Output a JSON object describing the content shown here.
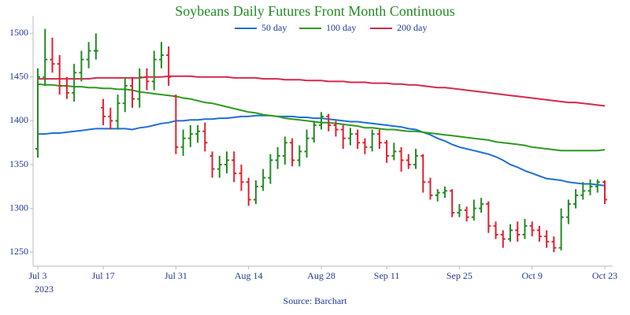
{
  "chart_data": {
    "type": "ohlc",
    "title": "Soybeans Daily Futures Front Month Continuous",
    "source": "Source: Barchart",
    "categories": [
      "Jul 3",
      null,
      null,
      null,
      null,
      null,
      null,
      null,
      null,
      "Jul 17",
      null,
      null,
      null,
      null,
      null,
      null,
      null,
      null,
      null,
      "Jul 31",
      null,
      null,
      null,
      null,
      null,
      null,
      null,
      null,
      null,
      "Aug 14",
      null,
      null,
      null,
      null,
      null,
      null,
      null,
      null,
      null,
      "Aug 28",
      null,
      null,
      null,
      null,
      null,
      null,
      null,
      null,
      "Sep 11",
      null,
      null,
      null,
      null,
      null,
      null,
      null,
      null,
      null,
      "Sep 25",
      null,
      null,
      null,
      null,
      null,
      null,
      null,
      null,
      null,
      "Oct 9",
      null,
      null,
      null,
      null,
      null,
      null,
      null,
      null,
      null,
      "Oct 23"
    ],
    "x_year": "2023",
    "open": [
      1368,
      1450,
      1470,
      1465,
      1440,
      1432,
      1455,
      1470,
      1480,
      1415,
      1405,
      1400,
      1420,
      1440,
      1425,
      1450,
      1445,
      1470,
      1475,
      1428,
      1370,
      1380,
      1385,
      1388,
      1360,
      1345,
      1350,
      1355,
      1340,
      1330,
      1310,
      1325,
      1335,
      1355,
      1360,
      1375,
      1355,
      1365,
      1380,
      1395,
      1405,
      1395,
      1390,
      1380,
      1385,
      1375,
      1370,
      1385,
      1375,
      1360,
      1365,
      1355,
      1350,
      1360,
      1330,
      1315,
      1318,
      1320,
      1295,
      1298,
      1290,
      1300,
      1305,
      1280,
      1270,
      1265,
      1275,
      1270,
      1280,
      1275,
      1268,
      1262,
      1255,
      1290,
      1305,
      1315,
      1320,
      1325,
      1330
    ],
    "high": [
      1460,
      1505,
      1495,
      1475,
      1450,
      1465,
      1480,
      1490,
      1500,
      1425,
      1415,
      1430,
      1450,
      1450,
      1460,
      1460,
      1480,
      1490,
      1485,
      1430,
      1390,
      1395,
      1395,
      1398,
      1365,
      1360,
      1365,
      1365,
      1350,
      1335,
      1332,
      1345,
      1362,
      1370,
      1382,
      1380,
      1372,
      1390,
      1400,
      1410,
      1408,
      1400,
      1395,
      1392,
      1390,
      1380,
      1390,
      1390,
      1378,
      1375,
      1370,
      1362,
      1368,
      1362,
      1335,
      1322,
      1325,
      1322,
      1305,
      1302,
      1310,
      1312,
      1308,
      1285,
      1275,
      1282,
      1285,
      1288,
      1285,
      1280,
      1275,
      1268,
      1300,
      1310,
      1322,
      1330,
      1333,
      1333,
      1332
    ],
    "low": [
      1358,
      1440,
      1455,
      1430,
      1425,
      1422,
      1445,
      1460,
      1470,
      1395,
      1390,
      1390,
      1410,
      1415,
      1415,
      1435,
      1435,
      1460,
      1440,
      1362,
      1360,
      1370,
      1375,
      1365,
      1335,
      1335,
      1340,
      1330,
      1320,
      1303,
      1305,
      1320,
      1328,
      1345,
      1350,
      1348,
      1348,
      1358,
      1375,
      1390,
      1388,
      1382,
      1368,
      1372,
      1368,
      1362,
      1365,
      1368,
      1352,
      1355,
      1342,
      1345,
      1345,
      1318,
      1310,
      1308,
      1312,
      1290,
      1290,
      1285,
      1286,
      1295,
      1272,
      1265,
      1255,
      1262,
      1262,
      1265,
      1268,
      1262,
      1255,
      1250,
      1252,
      1282,
      1300,
      1310,
      1315,
      1318,
      1305
    ],
    "close": [
      1450,
      1470,
      1465,
      1440,
      1432,
      1455,
      1470,
      1480,
      1480,
      1405,
      1400,
      1420,
      1440,
      1425,
      1450,
      1445,
      1470,
      1475,
      1450,
      1370,
      1380,
      1385,
      1388,
      1375,
      1345,
      1350,
      1355,
      1340,
      1330,
      1310,
      1325,
      1335,
      1355,
      1360,
      1375,
      1355,
      1365,
      1380,
      1395,
      1405,
      1395,
      1390,
      1380,
      1385,
      1375,
      1370,
      1385,
      1375,
      1360,
      1365,
      1355,
      1350,
      1360,
      1330,
      1315,
      1318,
      1320,
      1295,
      1298,
      1290,
      1300,
      1305,
      1280,
      1270,
      1265,
      1275,
      1270,
      1280,
      1275,
      1268,
      1262,
      1255,
      1290,
      1305,
      1315,
      1320,
      1325,
      1330,
      1310
    ],
    "up_color": "#228b22",
    "down_color": "#e3202e",
    "series": [
      {
        "name": "50 day",
        "color": "#1f6fd6",
        "values": [
          1385,
          1385,
          1386,
          1386,
          1387,
          1388,
          1389,
          1390,
          1391,
          1391,
          1391,
          1391,
          1391,
          1390,
          1392,
          1393,
          1395,
          1397,
          1398,
          1400,
          1400,
          1401,
          1401,
          1402,
          1402,
          1403,
          1403,
          1404,
          1405,
          1405,
          1406,
          1406,
          1406,
          1405,
          1405,
          1405,
          1404,
          1404,
          1403,
          1403,
          1402,
          1401,
          1400,
          1399,
          1399,
          1398,
          1397,
          1396,
          1395,
          1394,
          1393,
          1391,
          1390,
          1387,
          1384,
          1380,
          1377,
          1373,
          1370,
          1368,
          1366,
          1364,
          1362,
          1359,
          1355,
          1350,
          1347,
          1343,
          1340,
          1337,
          1334,
          1333,
          1332,
          1330,
          1329,
          1328,
          1328,
          1327,
          1326
        ]
      },
      {
        "name": "100 day",
        "color": "#2e9a1f",
        "values": [
          1442,
          1441,
          1441,
          1440,
          1440,
          1439,
          1439,
          1438,
          1438,
          1437,
          1437,
          1436,
          1436,
          1435,
          1433,
          1432,
          1431,
          1430,
          1429,
          1428,
          1426,
          1425,
          1423,
          1421,
          1420,
          1418,
          1416,
          1414,
          1412,
          1410,
          1409,
          1407,
          1406,
          1405,
          1403,
          1402,
          1401,
          1400,
          1399,
          1398,
          1398,
          1397,
          1396,
          1395,
          1394,
          1392,
          1392,
          1391,
          1390,
          1390,
          1389,
          1388,
          1388,
          1387,
          1386,
          1385,
          1384,
          1383,
          1382,
          1381,
          1380,
          1379,
          1378,
          1376,
          1375,
          1374,
          1373,
          1372,
          1370,
          1369,
          1368,
          1367,
          1366,
          1366,
          1366,
          1366,
          1366,
          1366,
          1367
        ]
      },
      {
        "name": "200 day",
        "color": "#d42a4a",
        "values": [
          1448,
          1448,
          1448,
          1448,
          1448,
          1448,
          1448,
          1448,
          1449,
          1449,
          1449,
          1449,
          1449,
          1449,
          1449,
          1450,
          1450,
          1450,
          1451,
          1451,
          1451,
          1451,
          1450,
          1450,
          1450,
          1450,
          1450,
          1449,
          1449,
          1449,
          1449,
          1448,
          1448,
          1448,
          1447,
          1447,
          1447,
          1446,
          1446,
          1446,
          1445,
          1445,
          1445,
          1444,
          1444,
          1444,
          1443,
          1443,
          1443,
          1442,
          1442,
          1441,
          1441,
          1440,
          1439,
          1438,
          1438,
          1437,
          1436,
          1435,
          1434,
          1433,
          1432,
          1431,
          1430,
          1429,
          1428,
          1427,
          1426,
          1425,
          1424,
          1423,
          1422,
          1421,
          1421,
          1420,
          1419,
          1418,
          1417
        ]
      }
    ],
    "ylim": [
      1234,
      1520
    ],
    "yticks": [
      1250,
      1300,
      1350,
      1400,
      1450,
      1500
    ]
  }
}
